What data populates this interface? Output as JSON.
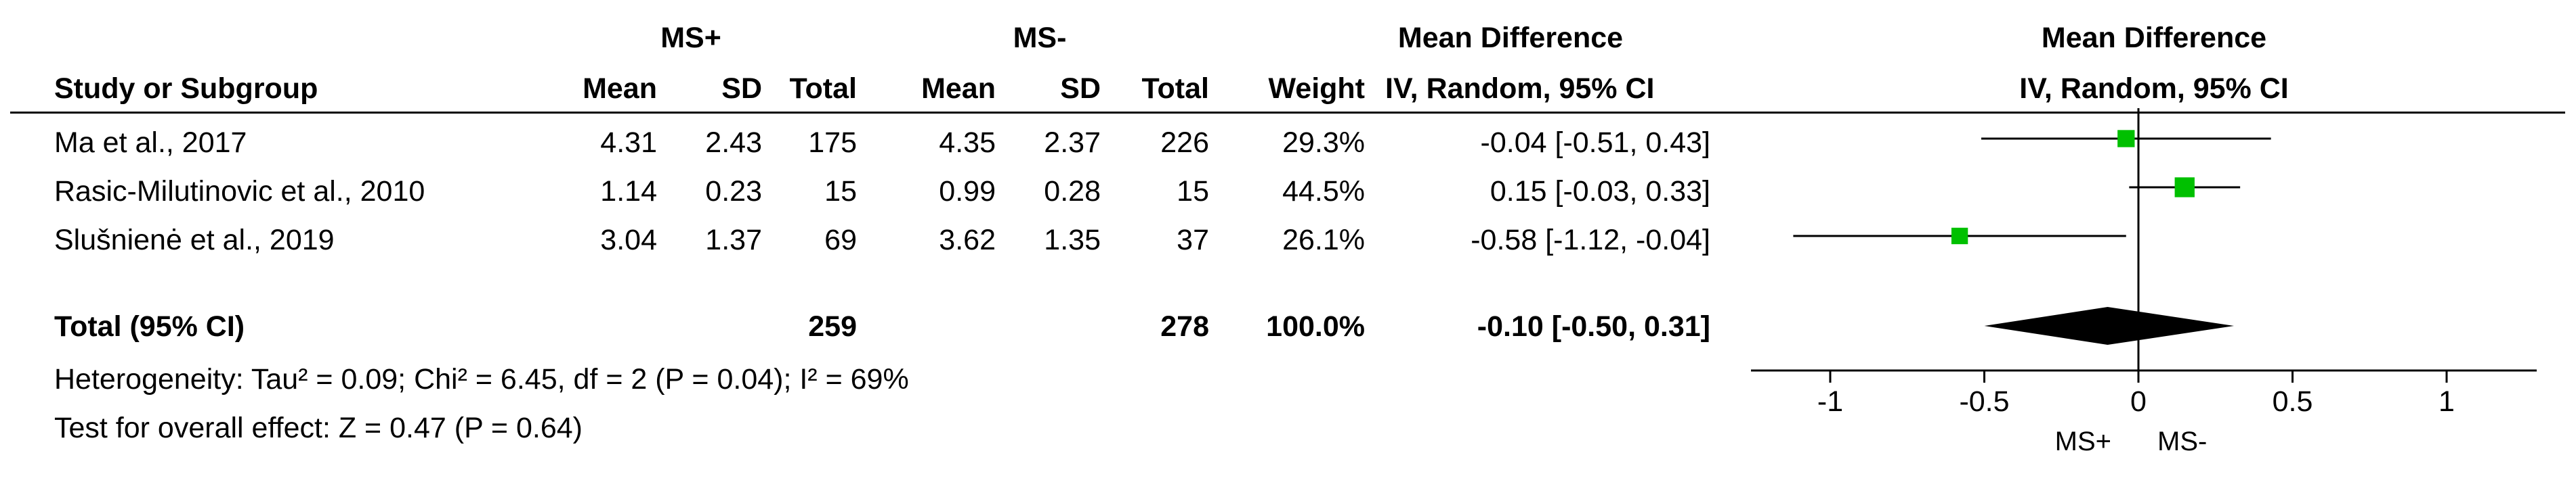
{
  "table": {
    "group1_label": "MS+",
    "group2_label": "MS-",
    "effect_header": "Mean Difference",
    "effect_subheader": "IV, Random, 95% CI",
    "columns": [
      "Study or Subgroup",
      "Mean",
      "SD",
      "Total",
      "Mean",
      "SD",
      "Total",
      "Weight",
      "IV, Random, 95% CI"
    ],
    "studies": [
      {
        "name": "Ma et al., 2017",
        "mean1": "4.31",
        "sd1": "2.43",
        "total1": "175",
        "mean2": "4.35",
        "sd2": "2.37",
        "total2": "226",
        "weight": "29.3%",
        "ci": "-0.04 [-0.51, 0.43]"
      },
      {
        "name": "Rasic-Milutinovic et al., 2010",
        "mean1": "1.14",
        "sd1": "0.23",
        "total1": "15",
        "mean2": "0.99",
        "sd2": "0.28",
        "total2": "15",
        "weight": "44.5%",
        "ci": "0.15 [-0.03, 0.33]"
      },
      {
        "name": "Slušnienė et al., 2019",
        "mean1": "3.04",
        "sd1": "1.37",
        "total1": "69",
        "mean2": "3.62",
        "sd2": "1.35",
        "total2": "37",
        "weight": "26.1%",
        "ci": "-0.58 [-1.12, -0.04]"
      }
    ],
    "total": {
      "label": "Total (95% CI)",
      "total1": "259",
      "total2": "278",
      "weight": "100.0%",
      "ci": "-0.10 [-0.50, 0.31]"
    },
    "heterogeneity": "Heterogeneity: Tau² = 0.09; Chi² = 6.45, df = 2 (P = 0.04); I² = 69%",
    "overall_effect": "Test for overall effect: Z = 0.47 (P = 0.64)"
  },
  "chart_data": {
    "type": "scatter",
    "title": "Mean Difference",
    "subtitle": "IV, Random, 95% CI",
    "xlim": [
      -1.1,
      1.3
    ],
    "xticks": [
      -1,
      -0.5,
      0,
      0.5,
      1
    ],
    "xtick_labels": [
      "-1",
      "-0.5",
      "0",
      "0.5",
      "1"
    ],
    "favours_left": "MS+",
    "favours_right": "MS-",
    "series": [
      {
        "study": "Ma et al., 2017",
        "md": -0.04,
        "lower": -0.51,
        "upper": 0.43,
        "weight": 29.3
      },
      {
        "study": "Rasic-Milutinovic et al., 2010",
        "md": 0.15,
        "lower": -0.03,
        "upper": 0.33,
        "weight": 44.5
      },
      {
        "study": "Slušnienė et al., 2019",
        "md": -0.58,
        "lower": -1.12,
        "upper": -0.04,
        "weight": 26.1
      }
    ],
    "pooled": {
      "md": -0.1,
      "lower": -0.5,
      "upper": 0.31
    },
    "colors": {
      "square": "#00c000",
      "diamond": "#000000",
      "line": "#000000"
    }
  }
}
